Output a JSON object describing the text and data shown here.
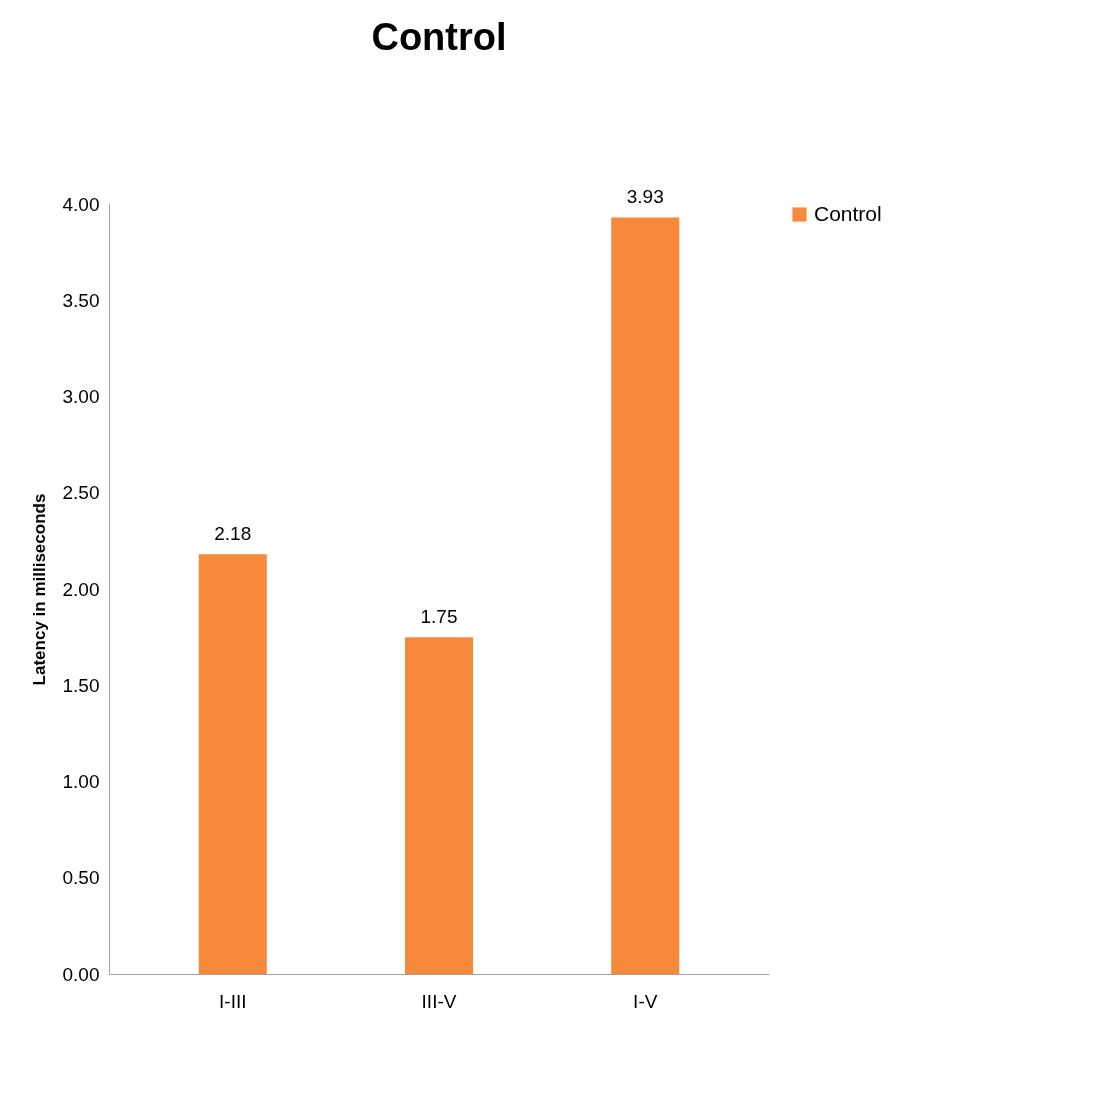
{
  "chart_data": {
    "type": "bar",
    "title": "Control",
    "ylabel": "Latency in milliseconds",
    "categories": [
      "I-III",
      "III-V",
      "I-V"
    ],
    "series": [
      {
        "name": "Control",
        "color": "#f68a3a",
        "values": [
          2.18,
          1.75,
          3.93
        ]
      }
    ],
    "ylim": [
      0,
      4
    ],
    "yticks": [
      {
        "value": 0,
        "label": "0.00"
      },
      {
        "value": 0.5,
        "label": "0.50"
      },
      {
        "value": 1,
        "label": "1.00"
      },
      {
        "value": 1.5,
        "label": "1.50"
      },
      {
        "value": 2,
        "label": "2.00"
      },
      {
        "value": 2.5,
        "label": "2.50"
      },
      {
        "value": 3,
        "label": "3.00"
      },
      {
        "value": 3.5,
        "label": "3.50"
      },
      {
        "value": 4,
        "label": "4.00"
      }
    ],
    "data_labels": true,
    "legend": "right",
    "grid": false
  }
}
